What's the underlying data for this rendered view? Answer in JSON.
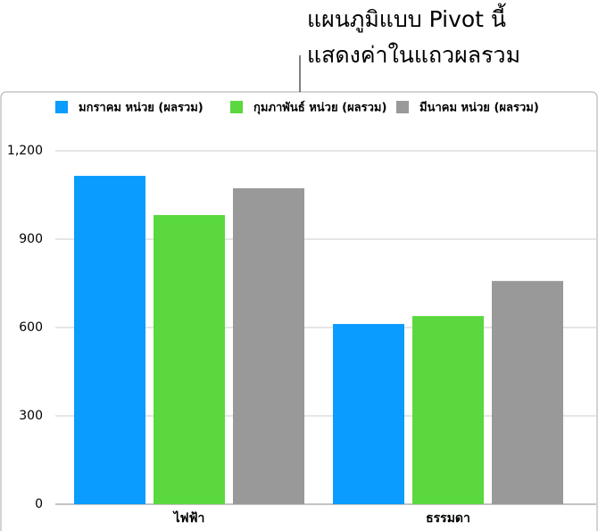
{
  "chart_data": {
    "type": "bar",
    "annotation": [
      "แผนภูมิแบบ Pivot นี้",
      "แสดงค่าในแถวผลรวม"
    ],
    "categories": [
      "ไฟฟ้า",
      "ธรรมดา"
    ],
    "series": [
      {
        "name": "มกราคม หน่วย (ผลรวม)",
        "color": "#0a9cff",
        "values": [
          1115,
          612
        ]
      },
      {
        "name": "กุมภาพันธ์ หน่วย (ผลรวม)",
        "color": "#5ad83e",
        "values": [
          982,
          639
        ]
      },
      {
        "name": "มีนาคม หน่วย (ผลรวม)",
        "color": "#999999",
        "values": [
          1073,
          758
        ]
      }
    ],
    "ylim": [
      0,
      1200
    ],
    "yticks": [
      0,
      300,
      600,
      900,
      {
        "value": 1200,
        "label": "1,200"
      }
    ],
    "grid": true
  }
}
